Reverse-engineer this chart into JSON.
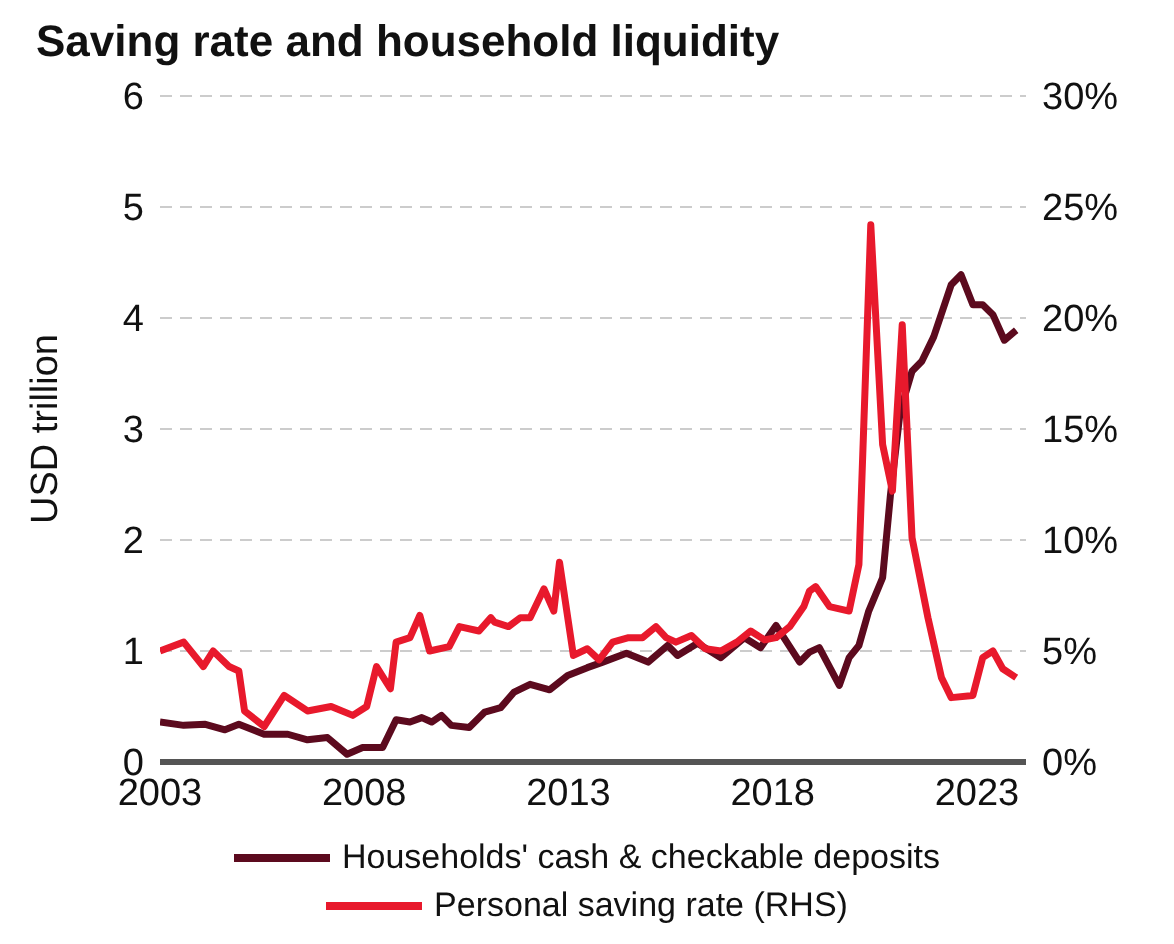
{
  "chart_data": {
    "type": "line",
    "title": "Saving rate and household liquidity",
    "ylabel": "USD trillion",
    "xlim": [
      2003,
      2024.2
    ],
    "xticks": [
      2003,
      2008,
      2013,
      2018,
      2023
    ],
    "ylim": [
      0,
      6
    ],
    "yticks": [
      0,
      1,
      2,
      3,
      4,
      5,
      6
    ],
    "y2lim": [
      0,
      30
    ],
    "y2ticks": [
      {
        "value": 0,
        "label": "0%"
      },
      {
        "value": 5,
        "label": "5%"
      },
      {
        "value": 10,
        "label": "10%"
      },
      {
        "value": 15,
        "label": "15%"
      },
      {
        "value": 20,
        "label": "20%"
      },
      {
        "value": 25,
        "label": "25%"
      },
      {
        "value": 30,
        "label": "30%"
      }
    ],
    "grid": "y",
    "legend": "bottom",
    "marker": "none",
    "line_style": "solid",
    "series": [
      {
        "name": "Households' cash & checkable deposits",
        "color": "#5c0a1e",
        "x": [
          2003.0,
          2003.58,
          2004.11,
          2004.59,
          2004.93,
          2005.55,
          2006.13,
          2006.61,
          2007.1,
          2007.58,
          2007.96,
          2008.45,
          2008.78,
          2009.12,
          2009.41,
          2009.65,
          2009.89,
          2010.13,
          2010.57,
          2010.95,
          2011.34,
          2011.67,
          2012.06,
          2012.54,
          2012.98,
          2013.46,
          2013.84,
          2014.42,
          2014.95,
          2015.43,
          2015.67,
          2016.16,
          2016.73,
          2017.31,
          2017.7,
          2018.08,
          2018.66,
          2018.9,
          2019.14,
          2019.63,
          2019.87,
          2020.11,
          2020.35,
          2020.69,
          2020.88,
          2021.12,
          2021.41,
          2021.65,
          2021.94,
          2022.37,
          2022.61,
          2022.9,
          2023.14,
          2023.39,
          2023.67,
          2023.96
        ],
        "values": [
          0.36,
          0.33,
          0.34,
          0.29,
          0.34,
          0.25,
          0.25,
          0.2,
          0.22,
          0.07,
          0.13,
          0.13,
          0.38,
          0.36,
          0.4,
          0.36,
          0.42,
          0.33,
          0.31,
          0.45,
          0.49,
          0.63,
          0.7,
          0.65,
          0.78,
          0.85,
          0.9,
          0.98,
          0.9,
          1.05,
          0.96,
          1.07,
          0.94,
          1.12,
          1.03,
          1.23,
          0.9,
          0.99,
          1.03,
          0.69,
          0.94,
          1.05,
          1.36,
          1.66,
          2.4,
          3.16,
          3.52,
          3.61,
          3.83,
          4.3,
          4.39,
          4.12,
          4.12,
          4.03,
          3.8,
          3.89
        ]
      },
      {
        "name": "Personal saving rate (RHS)",
        "color": "#e8192c",
        "axis": "y2",
        "x": [
          2003.0,
          2003.58,
          2004.06,
          2004.3,
          2004.69,
          2004.93,
          2005.07,
          2005.55,
          2006.04,
          2006.61,
          2007.19,
          2007.72,
          2008.06,
          2008.3,
          2008.64,
          2008.78,
          2009.12,
          2009.36,
          2009.6,
          2010.08,
          2010.33,
          2010.81,
          2011.1,
          2011.19,
          2011.53,
          2011.82,
          2012.06,
          2012.4,
          2012.64,
          2012.78,
          2013.12,
          2013.46,
          2013.75,
          2014.08,
          2014.47,
          2014.81,
          2015.14,
          2015.39,
          2015.63,
          2016.01,
          2016.35,
          2016.73,
          2017.12,
          2017.46,
          2017.8,
          2018.08,
          2018.42,
          2018.76,
          2018.9,
          2019.05,
          2019.39,
          2019.87,
          2020.11,
          2020.4,
          2020.69,
          2020.93,
          2021.17,
          2021.41,
          2021.8,
          2022.13,
          2022.37,
          2022.9,
          2023.14,
          2023.39,
          2023.63,
          2023.96
        ],
        "values": [
          5.0,
          5.4,
          4.3,
          5.0,
          4.3,
          4.1,
          2.3,
          1.6,
          3.0,
          2.3,
          2.5,
          2.1,
          2.5,
          4.3,
          3.3,
          5.4,
          5.6,
          6.6,
          5.0,
          5.2,
          6.1,
          5.9,
          6.5,
          6.3,
          6.1,
          6.5,
          6.5,
          7.8,
          6.8,
          9.0,
          4.8,
          5.1,
          4.6,
          5.4,
          5.6,
          5.6,
          6.1,
          5.6,
          5.4,
          5.7,
          5.1,
          5.0,
          5.4,
          5.9,
          5.5,
          5.6,
          6.1,
          7.0,
          7.7,
          7.9,
          7.0,
          6.8,
          8.9,
          24.2,
          14.3,
          12.2,
          19.7,
          10.1,
          6.5,
          3.8,
          2.9,
          3.0,
          4.7,
          5.0,
          4.2,
          3.8
        ]
      }
    ]
  }
}
